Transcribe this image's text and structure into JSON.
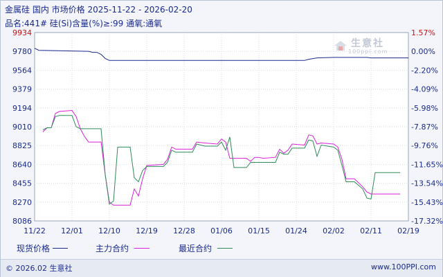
{
  "header": {
    "title": "金属硅 国内 市场价格 2025-11-22 - 2026-02-20",
    "subtitle": "品名:441# 硅(Si)含量(%)≥:99 通氧:通氧"
  },
  "watermark": {
    "name": "生意社",
    "url": "100ppi.com"
  },
  "legend": {
    "title": "现货价格",
    "items": [
      {
        "label": "主力合约",
        "color": "#d91fd9"
      },
      {
        "label": "最近合约",
        "color": "#2e8b57"
      }
    ],
    "spot_color": "#1a2a8c"
  },
  "footer": {
    "left": "© 2026.02 生意社",
    "right": "www.100PPI.com"
  },
  "chart_data": {
    "type": "line",
    "ylim": [
      8086,
      9934
    ],
    "y_ticks_left": [
      "9934",
      "9780",
      "9564",
      "9379",
      "9194",
      "9010",
      "8825",
      "8640",
      "8455",
      "8270",
      "8086"
    ],
    "y_ticks_right": [
      "1.57%",
      "0.00%",
      "-2.20%",
      "-4.09%",
      "-5.98%",
      "-7.87%",
      "-9.76%",
      "-11.65%",
      "-13.54%",
      "-15.43%",
      "-17.32%"
    ],
    "x_ticks": [
      "11/22",
      "12/01",
      "12/10",
      "12/19",
      "12/28",
      "01/06",
      "01/15",
      "01/24",
      "02/02",
      "02/11",
      "02/19"
    ],
    "x_range": [
      "2025-11-22",
      "2026-02-20"
    ],
    "grid": true,
    "series": [
      {
        "name": "现货价格",
        "color": "#1a2a8c",
        "values": [
          [
            "2025-11-22",
            9780
          ],
          [
            "2025-11-23",
            9760
          ],
          [
            "2025-12-05",
            9750
          ],
          [
            "2025-12-06",
            9740
          ],
          [
            "2025-12-07",
            9740
          ],
          [
            "2025-12-08",
            9720
          ],
          [
            "2025-12-09",
            9680
          ],
          [
            "2025-12-10",
            9660
          ],
          [
            "2026-01-26",
            9660
          ],
          [
            "2026-01-27",
            9672
          ],
          [
            "2026-01-29",
            9685
          ],
          [
            "2026-02-02",
            9690
          ],
          [
            "2026-02-10",
            9690
          ],
          [
            "2026-02-11",
            9685
          ],
          [
            "2026-02-20",
            9685
          ]
        ]
      },
      {
        "name": "主力合约",
        "color": "#d91fd9",
        "values": [
          [
            "2025-11-24",
            8960
          ],
          [
            "2025-11-25",
            9000
          ],
          [
            "2025-11-26",
            9000
          ],
          [
            "2025-11-27",
            9140
          ],
          [
            "2025-11-28",
            9160
          ],
          [
            "2025-12-01",
            9170
          ],
          [
            "2025-12-02",
            9110
          ],
          [
            "2025-12-03",
            8990
          ],
          [
            "2025-12-04",
            8915
          ],
          [
            "2025-12-05",
            8860
          ],
          [
            "2025-12-08",
            8860
          ],
          [
            "2025-12-09",
            8540
          ],
          [
            "2025-12-10",
            8270
          ],
          [
            "2025-12-11",
            8240
          ],
          [
            "2025-12-15",
            8240
          ],
          [
            "2025-12-16",
            8400
          ],
          [
            "2025-12-17",
            8330
          ],
          [
            "2025-12-18",
            8500
          ],
          [
            "2025-12-19",
            8630
          ],
          [
            "2025-12-23",
            8640
          ],
          [
            "2025-12-24",
            8690
          ],
          [
            "2025-12-25",
            8810
          ],
          [
            "2025-12-26",
            8790
          ],
          [
            "2025-12-30",
            8790
          ],
          [
            "2025-12-31",
            8860
          ],
          [
            "2026-01-02",
            8850
          ],
          [
            "2026-01-05",
            8840
          ],
          [
            "2026-01-06",
            8890
          ],
          [
            "2026-01-07",
            8860
          ],
          [
            "2026-01-08",
            8700
          ],
          [
            "2026-01-12",
            8700
          ],
          [
            "2026-01-13",
            8670
          ],
          [
            "2026-01-14",
            8710
          ],
          [
            "2026-01-15",
            8710
          ],
          [
            "2026-01-16",
            8700
          ],
          [
            "2026-01-19",
            8710
          ],
          [
            "2026-01-20",
            8790
          ],
          [
            "2026-01-21",
            8750
          ],
          [
            "2026-01-22",
            8780
          ],
          [
            "2026-01-23",
            8840
          ],
          [
            "2026-01-26",
            8830
          ],
          [
            "2026-01-27",
            8930
          ],
          [
            "2026-01-28",
            8920
          ],
          [
            "2026-01-29",
            8840
          ],
          [
            "2026-01-30",
            8850
          ],
          [
            "2026-02-02",
            8840
          ],
          [
            "2026-02-03",
            8810
          ],
          [
            "2026-02-04",
            8690
          ],
          [
            "2026-02-05",
            8500
          ],
          [
            "2026-02-07",
            8500
          ],
          [
            "2026-02-09",
            8420
          ],
          [
            "2026-02-10",
            8370
          ],
          [
            "2026-02-11",
            8350
          ],
          [
            "2026-02-13",
            8350
          ],
          [
            "2026-02-18",
            8350
          ]
        ]
      },
      {
        "name": "最近合约",
        "color": "#2e8b57",
        "values": [
          [
            "2025-11-24",
            8980
          ],
          [
            "2025-11-25",
            9000
          ],
          [
            "2025-11-26",
            9000
          ],
          [
            "2025-11-27",
            9110
          ],
          [
            "2025-11-28",
            9120
          ],
          [
            "2025-12-01",
            9120
          ],
          [
            "2025-12-02",
            9010
          ],
          [
            "2025-12-03",
            8990
          ],
          [
            "2025-12-04",
            8990
          ],
          [
            "2025-12-05",
            8990
          ],
          [
            "2025-12-08",
            8990
          ],
          [
            "2025-12-09",
            8540
          ],
          [
            "2025-12-10",
            8250
          ],
          [
            "2025-12-11",
            8280
          ],
          [
            "2025-12-12",
            8810
          ],
          [
            "2025-12-15",
            8810
          ],
          [
            "2025-12-16",
            8510
          ],
          [
            "2025-12-17",
            8470
          ],
          [
            "2025-12-18",
            8580
          ],
          [
            "2025-12-19",
            8620
          ],
          [
            "2025-12-23",
            8620
          ],
          [
            "2025-12-24",
            8660
          ],
          [
            "2025-12-25",
            8780
          ],
          [
            "2025-12-26",
            8760
          ],
          [
            "2025-12-30",
            8760
          ],
          [
            "2025-12-31",
            8840
          ],
          [
            "2026-01-02",
            8820
          ],
          [
            "2026-01-05",
            8820
          ],
          [
            "2026-01-06",
            8860
          ],
          [
            "2026-01-07",
            8780
          ],
          [
            "2026-01-08",
            8910
          ],
          [
            "2026-01-09",
            8610
          ],
          [
            "2026-01-12",
            8610
          ],
          [
            "2026-01-13",
            8660
          ],
          [
            "2026-01-14",
            8660
          ],
          [
            "2026-01-16",
            8660
          ],
          [
            "2026-01-19",
            8660
          ],
          [
            "2026-01-20",
            8760
          ],
          [
            "2026-01-21",
            8740
          ],
          [
            "2026-01-22",
            8740
          ],
          [
            "2026-01-23",
            8800
          ],
          [
            "2026-01-26",
            8800
          ],
          [
            "2026-01-27",
            8880
          ],
          [
            "2026-01-28",
            8870
          ],
          [
            "2026-01-29",
            8720
          ],
          [
            "2026-01-30",
            8830
          ],
          [
            "2026-02-02",
            8810
          ],
          [
            "2026-02-03",
            8780
          ],
          [
            "2026-02-04",
            8630
          ],
          [
            "2026-02-05",
            8470
          ],
          [
            "2026-02-07",
            8470
          ],
          [
            "2026-02-09",
            8400
          ],
          [
            "2026-02-10",
            8310
          ],
          [
            "2026-02-11",
            8300
          ],
          [
            "2026-02-12",
            8560
          ],
          [
            "2026-02-13",
            8560
          ],
          [
            "2026-02-18",
            8560
          ]
        ]
      }
    ]
  }
}
